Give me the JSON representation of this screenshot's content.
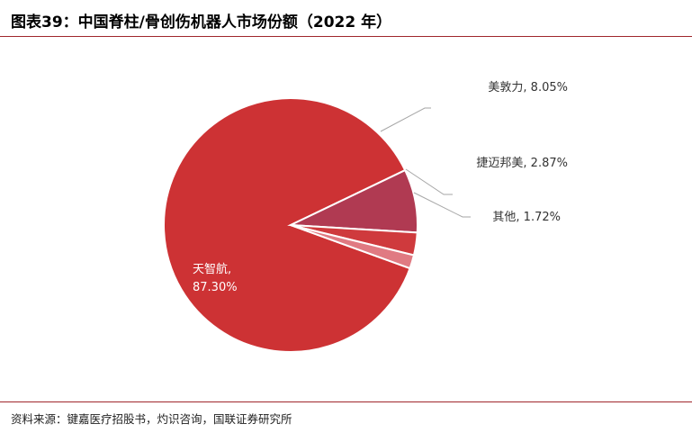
{
  "header": {
    "title": "图表39：中国脊柱/骨创伤机器人市场份额（2022 年）"
  },
  "footer": {
    "source": "资料来源：键嘉医疗招股书，灼识咨询，国联证券研究所"
  },
  "colors": {
    "accent_rule": "#a0272c"
  },
  "chart_data": {
    "type": "pie",
    "title": "图表39：中国脊柱/骨创伤机器人市场份额（2022 年）",
    "slices": [
      {
        "name": "天智航",
        "value": 87.3,
        "value_label": "87.30%",
        "color": "#cd3234"
      },
      {
        "name": "美敦力",
        "value": 8.05,
        "value_label": "8.05%",
        "color": "#b03a52"
      },
      {
        "name": "捷迈邦美",
        "value": 2.87,
        "value_label": "2.87%",
        "color": "#cf3a3d"
      },
      {
        "name": "其他",
        "value": 1.72,
        "value_label": "1.72%",
        "color": "#e07a82"
      }
    ],
    "legend": "none",
    "label_style": "category, value"
  }
}
